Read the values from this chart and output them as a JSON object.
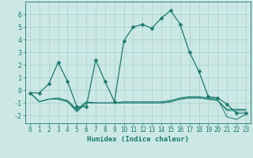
{
  "xlabel": "Humidex (Indice chaleur)",
  "bg_color": "#cce8e5",
  "grid_color": "#aad4d0",
  "line_color": "#1a7a6e",
  "xlim": [
    -0.5,
    23.5
  ],
  "ylim": [
    -2.6,
    7.0
  ],
  "yticks": [
    -2,
    -1,
    0,
    1,
    2,
    3,
    4,
    5,
    6
  ],
  "xticks": [
    0,
    1,
    2,
    3,
    4,
    5,
    6,
    7,
    8,
    9,
    10,
    11,
    12,
    13,
    14,
    15,
    16,
    17,
    18,
    19,
    20,
    21,
    22,
    23
  ],
  "series1_x": [
    0,
    1,
    2,
    3,
    4,
    5,
    6,
    7,
    8,
    9,
    10,
    11,
    12,
    13,
    14,
    15,
    16,
    17,
    18,
    19,
    20,
    21,
    22,
    23
  ],
  "series1_y": [
    -0.2,
    -0.2,
    0.5,
    2.2,
    0.7,
    -1.3,
    -1.3,
    2.4,
    0.7,
    -0.9,
    3.9,
    5.0,
    5.2,
    4.9,
    5.7,
    6.3,
    5.2,
    3.0,
    1.5,
    -0.5,
    -0.6,
    -1.1,
    -1.8,
    -1.8
  ],
  "series2_x": [
    0,
    1,
    2,
    3,
    4,
    5,
    6,
    7,
    8,
    9,
    10,
    11,
    12,
    13,
    14,
    15,
    16,
    17,
    18,
    19,
    20,
    21,
    22,
    23
  ],
  "series2_y": [
    -0.2,
    -0.9,
    -0.7,
    -0.6,
    -0.8,
    -1.5,
    -0.9,
    -1.0,
    -1.0,
    -1.0,
    -0.9,
    -0.9,
    -0.9,
    -0.9,
    -0.9,
    -0.8,
    -0.6,
    -0.5,
    -0.5,
    -0.6,
    -0.7,
    -2.1,
    -2.3,
    -1.9
  ],
  "series3_x": [
    0,
    1,
    2,
    3,
    4,
    5,
    6,
    7,
    8,
    9,
    10,
    11,
    12,
    13,
    14,
    15,
    16,
    17,
    18,
    19,
    20,
    21,
    22,
    23
  ],
  "series3_y": [
    -0.2,
    -0.9,
    -0.7,
    -0.7,
    -0.9,
    -1.6,
    -1.0,
    -1.0,
    -1.0,
    -1.0,
    -1.0,
    -1.0,
    -1.0,
    -1.0,
    -1.0,
    -0.9,
    -0.7,
    -0.6,
    -0.6,
    -0.7,
    -0.8,
    -1.5,
    -1.5,
    -1.5
  ],
  "series4_x": [
    0,
    1,
    2,
    3,
    4,
    5,
    6,
    7,
    8,
    9,
    10,
    11,
    12,
    13,
    14,
    15,
    16,
    17,
    18,
    19,
    20,
    21,
    22,
    23
  ],
  "series4_y": [
    -0.2,
    -0.9,
    -0.7,
    -0.7,
    -0.9,
    -1.7,
    -1.0,
    -1.0,
    -1.0,
    -1.0,
    -1.0,
    -1.0,
    -1.0,
    -1.0,
    -1.0,
    -0.9,
    -0.7,
    -0.6,
    -0.6,
    -0.7,
    -0.8,
    -1.6,
    -1.6,
    -1.6
  ],
  "xlabel_fontsize": 6.5,
  "tick_fontsize": 5.5,
  "ytick_fontsize": 6.0,
  "marker_size": 2.5,
  "line_width": 0.9
}
